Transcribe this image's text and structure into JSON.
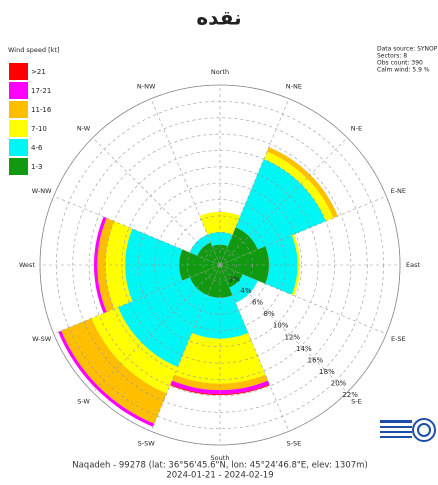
{
  "chart_data": {
    "type": "windrose",
    "title": "نقده",
    "legend_title": "Wind speed [kt]",
    "info": [
      "Data source: SYNOP",
      "Sectors: 8",
      "Obs count: 390",
      "Calm wind: 5.9 %"
    ],
    "footer": [
      "Naqadeh - 99278 (lat: 36°56'45.6\"N, lon: 45°24'46.8\"E, elev: 1307m)",
      "2024-01-21 - 2024-02-19"
    ],
    "direction_labels": [
      "North",
      "N-NE",
      "N-E",
      "E-NE",
      "East",
      "E-SE",
      "S-E",
      "S-SE",
      "South",
      "S-SW",
      "S-W",
      "W-SW",
      "West",
      "W-NW",
      "N-W",
      "N-NW"
    ],
    "rlim": [
      0,
      22
    ],
    "rticks": [
      {
        "value": 2,
        "label": "2%"
      },
      {
        "value": 4,
        "label": "4%"
      },
      {
        "value": 6,
        "label": "6%"
      },
      {
        "value": 8,
        "label": "8%"
      },
      {
        "value": 10,
        "label": "10%"
      },
      {
        "value": 12,
        "label": "12%"
      },
      {
        "value": 14,
        "label": "14%"
      },
      {
        "value": 16,
        "label": "16%"
      },
      {
        "value": 18,
        "label": "18%"
      },
      {
        "value": 20,
        "label": "20%"
      },
      {
        "value": 22,
        "label": "22%"
      }
    ],
    "grid": true,
    "series": [
      {
        "name": "1-3",
        "color": "#119911",
        "values": [
          2.5,
          5,
          6,
          3,
          4,
          4,
          5,
          3
        ]
      },
      {
        "name": "4-6",
        "color": "#00f5f5",
        "values": [
          1.5,
          9,
          3.5,
          2,
          5,
          9.5,
          6.6,
          1
        ]
      },
      {
        "name": "7-10",
        "color": "#ffff00",
        "values": [
          2.5,
          1,
          0.3,
          0,
          5.5,
          3.5,
          2.4,
          0
        ]
      },
      {
        "name": "11-16",
        "color": "#ffbf00",
        "values": [
          0,
          0.6,
          0,
          0,
          0.8,
          4,
          1,
          0
        ]
      },
      {
        "name": "17-21",
        "color": "#ff00ff",
        "values": [
          0,
          0,
          0,
          0,
          0.5,
          0.4,
          0.4,
          0
        ]
      },
      {
        "name": ">21",
        "color": "#ff0000",
        "values": [
          0,
          0,
          0,
          0,
          0.1,
          0,
          0,
          0
        ]
      }
    ]
  }
}
